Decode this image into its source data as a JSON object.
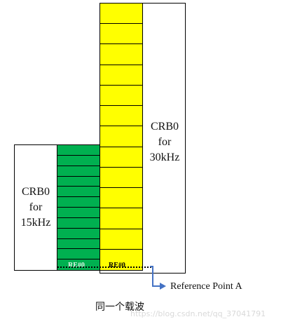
{
  "blocks": {
    "crb0_30": {
      "line1": "CRB0",
      "line2": "for",
      "line3": "30kHz",
      "yellow_cells": 13,
      "color": "#ffff00"
    },
    "crb0_15": {
      "line1": "CRB0",
      "line2": "for",
      "line3": "15kHz",
      "green_cells": 12,
      "color": "#00b050"
    }
  },
  "re_labels": {
    "green": "RE#0",
    "yellow": "RE#0"
  },
  "reference": {
    "label": "Reference Point A",
    "arrow_color": "#4472c4"
  },
  "caption": "同一个载波",
  "watermark": "https://blog.csdn.net/qq_37041791"
}
